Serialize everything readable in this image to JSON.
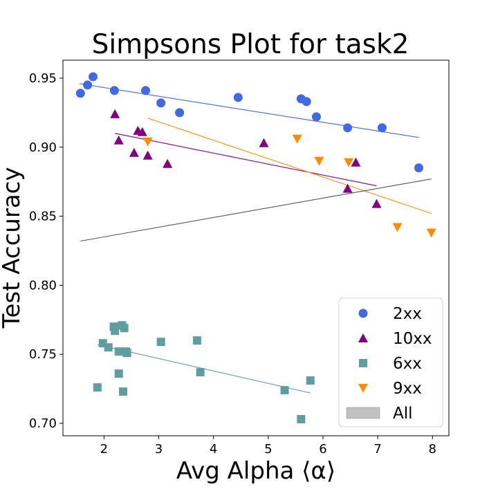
{
  "chart_data": {
    "type": "scatter",
    "title": "Simpsons Plot for task2",
    "xlabel": "Avg Alpha ⟨α⟩",
    "ylabel": "Test Accuracy",
    "xlim": [
      1.25,
      8.3
    ],
    "ylim": [
      0.691,
      0.963
    ],
    "xticks": [
      2,
      3,
      4,
      5,
      6,
      7,
      8
    ],
    "yticks": [
      0.7,
      0.75,
      0.8,
      0.85,
      0.9,
      0.95
    ],
    "xtick_labels": [
      "2",
      "3",
      "4",
      "5",
      "6",
      "7",
      "8"
    ],
    "ytick_labels": [
      "0.70",
      "0.75",
      "0.80",
      "0.85",
      "0.90",
      "0.95"
    ],
    "grid": false,
    "legend_position": "lower-right",
    "series": [
      {
        "name": "2xx",
        "marker": "circle",
        "color": "#4169e1",
        "points": [
          [
            1.57,
            0.939
          ],
          [
            1.7,
            0.945
          ],
          [
            1.8,
            0.951
          ],
          [
            2.19,
            0.941
          ],
          [
            2.76,
            0.941
          ],
          [
            3.04,
            0.932
          ],
          [
            3.38,
            0.925
          ],
          [
            4.45,
            0.936
          ],
          [
            5.6,
            0.935
          ],
          [
            5.7,
            0.933
          ],
          [
            5.88,
            0.922
          ],
          [
            6.45,
            0.914
          ],
          [
            7.08,
            0.914
          ],
          [
            7.75,
            0.885
          ]
        ],
        "fit": [
          [
            1.55,
            0.946
          ],
          [
            7.75,
            0.907
          ]
        ]
      },
      {
        "name": "10xx",
        "marker": "triangle-up",
        "color": "#800080",
        "points": [
          [
            2.2,
            0.924
          ],
          [
            2.27,
            0.905
          ],
          [
            2.55,
            0.896
          ],
          [
            2.62,
            0.912
          ],
          [
            2.7,
            0.911
          ],
          [
            2.8,
            0.894
          ],
          [
            3.16,
            0.888
          ],
          [
            4.92,
            0.903
          ],
          [
            6.45,
            0.87
          ],
          [
            6.6,
            0.889
          ],
          [
            6.98,
            0.859
          ]
        ],
        "fit": [
          [
            2.2,
            0.91
          ],
          [
            6.98,
            0.872
          ]
        ]
      },
      {
        "name": "6xx",
        "marker": "square",
        "color": "#5f9ea0",
        "points": [
          [
            1.88,
            0.726
          ],
          [
            1.98,
            0.758
          ],
          [
            2.08,
            0.755
          ],
          [
            2.18,
            0.77
          ],
          [
            2.2,
            0.767
          ],
          [
            2.27,
            0.752
          ],
          [
            2.27,
            0.736
          ],
          [
            2.33,
            0.771
          ],
          [
            2.35,
            0.723
          ],
          [
            2.37,
            0.769
          ],
          [
            2.4,
            0.752
          ],
          [
            2.42,
            0.751
          ],
          [
            3.04,
            0.759
          ],
          [
            3.7,
            0.76
          ],
          [
            3.76,
            0.737
          ],
          [
            5.3,
            0.724
          ],
          [
            5.6,
            0.703
          ],
          [
            5.77,
            0.731
          ]
        ],
        "fit": [
          [
            1.88,
            0.757
          ],
          [
            5.77,
            0.722
          ]
        ]
      },
      {
        "name": "9xx",
        "marker": "triangle-down",
        "color": "#ff8c00",
        "points": [
          [
            2.8,
            0.904
          ],
          [
            5.53,
            0.906
          ],
          [
            5.93,
            0.89
          ],
          [
            6.47,
            0.889
          ],
          [
            7.36,
            0.842
          ],
          [
            7.98,
            0.838
          ]
        ],
        "fit": [
          [
            2.8,
            0.921
          ],
          [
            7.98,
            0.852
          ]
        ]
      },
      {
        "name": "All",
        "marker": "patch",
        "color": "#c0c0c0",
        "line_color": "#555555",
        "points": [],
        "fit": [
          [
            1.57,
            0.832
          ],
          [
            7.98,
            0.877
          ]
        ]
      }
    ]
  }
}
